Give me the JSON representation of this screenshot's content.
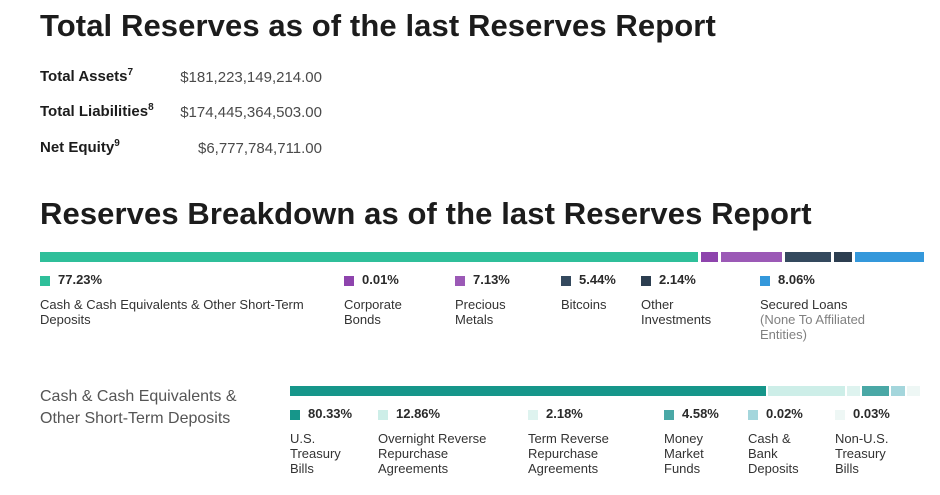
{
  "reserves": {
    "title": "Total Reserves as of the last Reserves Report",
    "items": [
      {
        "label": "Total Assets",
        "sup": "7",
        "value": "$181,223,149,214.00"
      },
      {
        "label": "Total Liabilities",
        "sup": "8",
        "value": "$174,445,364,503.00"
      },
      {
        "label": "Net Equity",
        "sup": "9",
        "value": "$6,777,784,711.00"
      }
    ]
  },
  "breakdown": {
    "title": "Reserves Breakdown as of the last Reserves Report"
  },
  "cash": {
    "title": "Cash & Cash Equivalents &\nOther Short-Term Deposits"
  },
  "chart_data": [
    {
      "type": "bar",
      "orientation": "horizontal-stacked",
      "series": [
        {
          "name": "Cash & Cash Equivalents & Other Short-Term Deposits",
          "value": 77.23,
          "label": "77.23%",
          "color": "#2fbf9a"
        },
        {
          "name": "Corporate Bonds",
          "value": 0.01,
          "label": "0.01%",
          "color": "#8e44ad"
        },
        {
          "name": "Precious Metals",
          "value": 7.13,
          "label": "7.13%",
          "color": "#9b59b6"
        },
        {
          "name": "Bitcoins",
          "value": 5.44,
          "label": "5.44%",
          "color": "#34495e"
        },
        {
          "name": "Other Investments",
          "value": 2.14,
          "label": "2.14%",
          "color": "#2c3e50"
        },
        {
          "name": "Secured Loans",
          "note": "(None To Affiliated Entities)",
          "value": 8.06,
          "label": "8.06%",
          "color": "#3498db"
        }
      ]
    },
    {
      "type": "bar",
      "orientation": "horizontal-stacked",
      "series": [
        {
          "name": "U.S. Treasury Bills",
          "value": 80.33,
          "label": "80.33%",
          "color": "#16968a"
        },
        {
          "name": "Overnight Reverse Repurchase Agreements",
          "value": 12.86,
          "label": "12.86%",
          "color": "#cdeee8"
        },
        {
          "name": "Term Reverse Repurchase Agreements",
          "value": 2.18,
          "label": "2.18%",
          "color": "#def3ef"
        },
        {
          "name": "Money Market Funds",
          "value": 4.58,
          "label": "4.58%",
          "color": "#4aa8a6"
        },
        {
          "name": "Cash & Bank Deposits",
          "value": 0.02,
          "label": "0.02%",
          "color": "#a4d6dc"
        },
        {
          "name": "Non-U.S. Treasury Bills",
          "value": 0.03,
          "label": "0.03%",
          "color": "#eef7f5"
        }
      ]
    }
  ]
}
